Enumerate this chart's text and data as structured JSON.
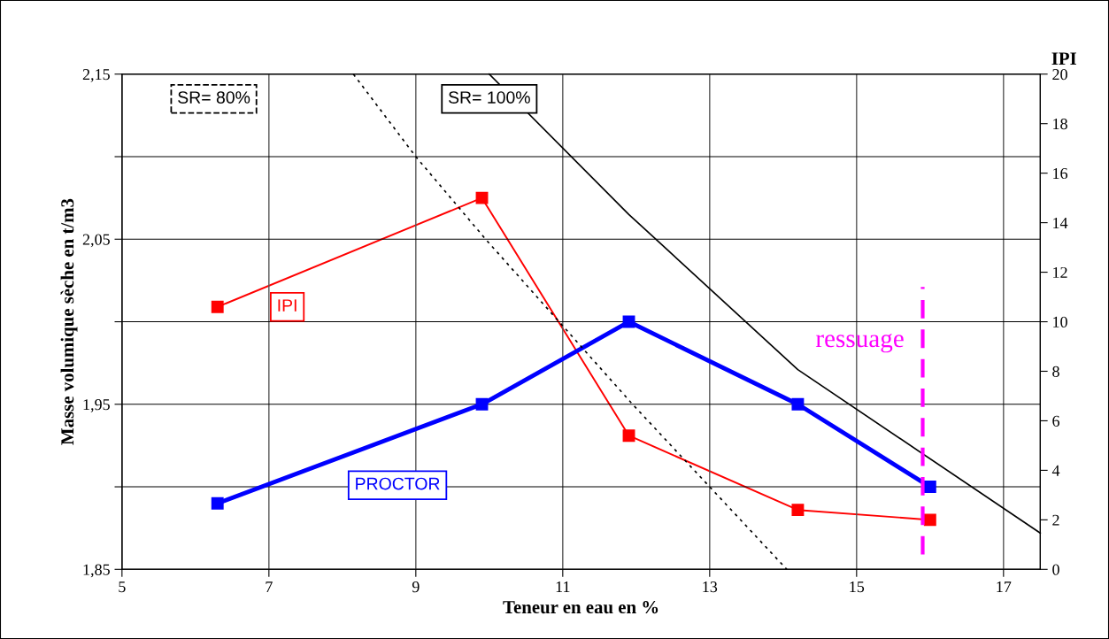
{
  "chart_data": {
    "type": "line",
    "xlabel": "Teneur en eau en %",
    "ylabel": "Masse volumique sèche en t/m3",
    "y2label": "IPI",
    "xlim": [
      5,
      17.5
    ],
    "xticks": [
      5,
      7,
      9,
      11,
      13,
      15,
      17
    ],
    "ylim": [
      1.85,
      2.15
    ],
    "yticks": [
      {
        "value": 1.85,
        "label": "1,85"
      },
      {
        "value": 1.9,
        "label": null
      },
      {
        "value": 1.95,
        "label": "1,95"
      },
      {
        "value": 2.0,
        "label": null
      },
      {
        "value": 2.05,
        "label": "2,05"
      },
      {
        "value": 2.1,
        "label": null
      },
      {
        "value": 2.15,
        "label": "2,15"
      }
    ],
    "y2lim": [
      0,
      20
    ],
    "y2ticks": [
      0,
      2,
      4,
      6,
      8,
      10,
      12,
      14,
      16,
      18,
      20
    ],
    "grid": true,
    "series": [
      {
        "name": "PROCTOR",
        "color": "#0000ff",
        "marker": "square",
        "line_style": "solid",
        "x": [
          6.3,
          9.9,
          11.9,
          14.2,
          16.0
        ],
        "values": [
          1.89,
          1.95,
          2.0,
          1.95,
          1.9
        ]
      },
      {
        "name": "IPI",
        "color": "#ff0000",
        "marker": "square",
        "line_style": "solid",
        "axis": "y2",
        "x": [
          6.3,
          9.9,
          11.9,
          14.2,
          16.0
        ],
        "values": [
          10.6,
          15.0,
          5.4,
          2.4,
          2.0
        ]
      },
      {
        "name": "SR= 80%",
        "color": "#000000",
        "marker": "none",
        "line_style": "dotted",
        "x": [
          8.15,
          9.0,
          9.95,
          10.95,
          11.95,
          13.0,
          14.05
        ],
        "values": [
          2.15,
          2.1,
          2.05,
          2.0,
          1.95,
          1.9,
          1.85
        ]
      },
      {
        "name": "SR= 100%",
        "color": "#000000",
        "marker": "none",
        "line_style": "solid",
        "x": [
          10.0,
          11.9,
          14.2,
          17.5
        ],
        "values": [
          2.15,
          2.065,
          1.971,
          1.872
        ]
      }
    ],
    "ref_lines": [
      {
        "axis": "x",
        "value": 15.9,
        "label": "ressuage",
        "color": "#ff00ff",
        "line_style": "dashed"
      }
    ]
  }
}
